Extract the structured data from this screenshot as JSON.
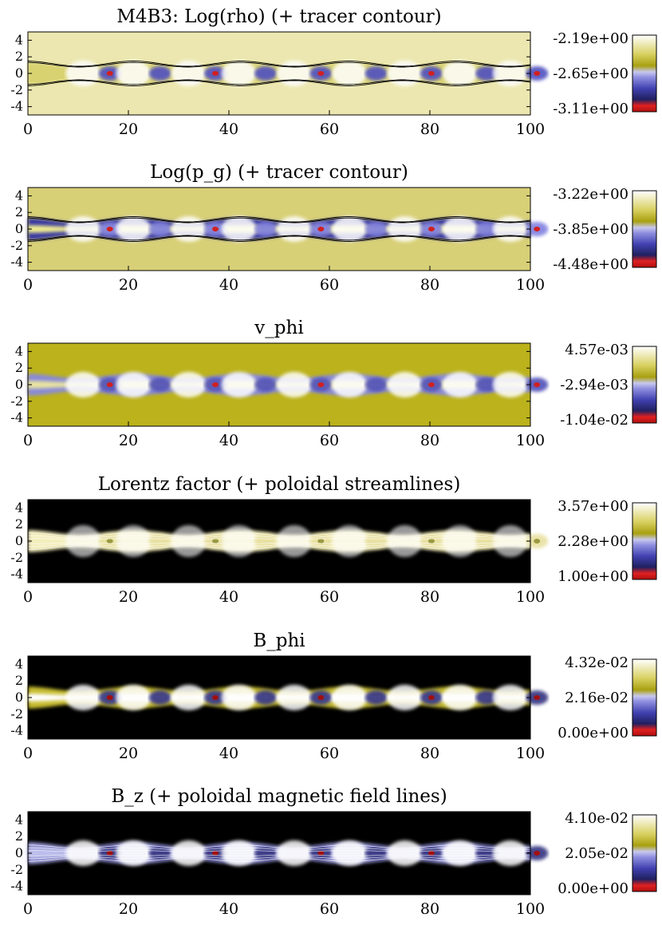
{
  "figure_label": "M4B3",
  "chart_data": [
    {
      "type": "heatmap",
      "title": "M4B3: Log(rho) (+ tracer contour)",
      "xlim": [
        0,
        100
      ],
      "ylim": [
        -5,
        5
      ],
      "xticks": [
        "0",
        "20",
        "40",
        "60",
        "80",
        "100"
      ],
      "yticks": [
        "4",
        "2",
        "0",
        "-2",
        "-4"
      ],
      "colorbar": {
        "max": "-2.19e+00",
        "mid": "-2.65e+00",
        "min": "-3.11e+00"
      },
      "background": "#ece7b0",
      "overlay": "tracer contour",
      "knot_positions": [
        12,
        21,
        32,
        42,
        53,
        64,
        75,
        86,
        96
      ]
    },
    {
      "type": "heatmap",
      "title": "Log(p_g) (+ tracer contour)",
      "xlim": [
        0,
        100
      ],
      "ylim": [
        -5,
        5
      ],
      "xticks": [
        "0",
        "20",
        "40",
        "60",
        "80",
        "100"
      ],
      "yticks": [
        "4",
        "2",
        "0",
        "-2",
        "-4"
      ],
      "colorbar": {
        "max": "-3.22e+00",
        "mid": "-3.85e+00",
        "min": "-4.48e+00"
      },
      "background": "#d8d077",
      "overlay": "tracer contour"
    },
    {
      "type": "heatmap",
      "title": "v_phi",
      "xlim": [
        0,
        100
      ],
      "ylim": [
        -5,
        5
      ],
      "xticks": [
        "0",
        "20",
        "40",
        "60",
        "80",
        "100"
      ],
      "yticks": [
        "4",
        "2",
        "0",
        "-2",
        "-4"
      ],
      "colorbar": {
        "max": "4.57e-03",
        "mid": "-2.94e-03",
        "min": "-1.04e-02"
      },
      "background": "#bbb21c"
    },
    {
      "type": "heatmap",
      "title": "Lorentz factor (+ poloidal streamlines)",
      "xlim": [
        0,
        100
      ],
      "ylim": [
        -5,
        5
      ],
      "xticks": [
        "0",
        "20",
        "40",
        "60",
        "80",
        "100"
      ],
      "yticks": [
        "4",
        "2",
        "0",
        "-2",
        "-4"
      ],
      "colorbar": {
        "max": "3.57e+00",
        "mid": "2.28e+00",
        "min": "1.00e+00"
      },
      "background": "#000000",
      "overlay": "poloidal streamlines"
    },
    {
      "type": "heatmap",
      "title": "B_phi",
      "xlim": [
        0,
        100
      ],
      "ylim": [
        -5,
        5
      ],
      "xticks": [
        "0",
        "20",
        "40",
        "60",
        "80",
        "100"
      ],
      "yticks": [
        "4",
        "2",
        "0",
        "-2",
        "-4"
      ],
      "colorbar": {
        "max": "4.32e-02",
        "mid": "2.16e-02",
        "min": "0.00e+00"
      },
      "background": "#000000"
    },
    {
      "type": "heatmap",
      "title": "B_z (+ poloidal magnetic field lines)",
      "xlim": [
        0,
        100
      ],
      "ylim": [
        -5,
        5
      ],
      "xticks": [
        "0",
        "20",
        "40",
        "60",
        "80",
        "100"
      ],
      "yticks": [
        "4",
        "2",
        "0",
        "-2",
        "-4"
      ],
      "colorbar": {
        "max": "4.10e-02",
        "mid": "2.05e-02",
        "min": "0.00e+00"
      },
      "background": "#000000",
      "overlay": "poloidal magnetic field lines"
    }
  ],
  "colormap": [
    "#d01010",
    "#303080",
    "#7070d8",
    "#a8a8e0",
    "#b8b020",
    "#ffffff"
  ]
}
